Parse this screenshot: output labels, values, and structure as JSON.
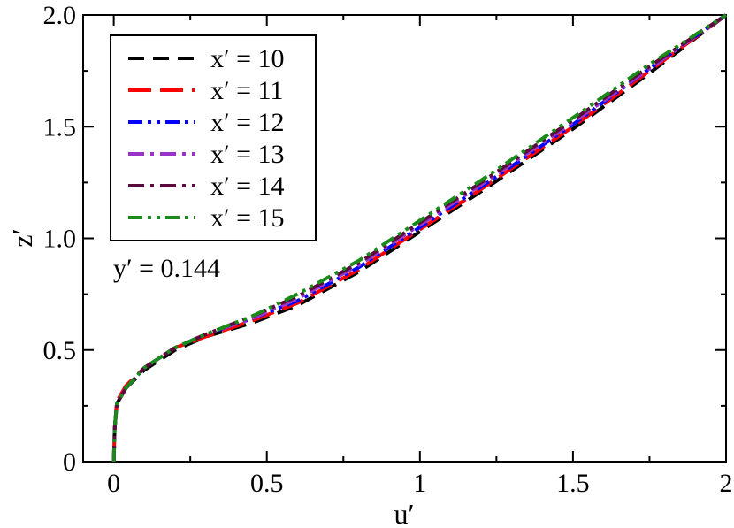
{
  "chart_data": {
    "type": "line",
    "xlabel": "u′",
    "ylabel": "z′",
    "xlim": [
      -0.1,
      2.0
    ],
    "ylim": [
      0,
      2.0
    ],
    "xticks": [
      0,
      0.5,
      1,
      1.5,
      2
    ],
    "xtick_labels": [
      "0",
      "0.5",
      "1",
      "1.5",
      "2"
    ],
    "yticks": [
      0,
      0.5,
      1.0,
      1.5,
      2.0
    ],
    "ytick_labels": [
      "0",
      "0.5",
      "1.0",
      "1.5",
      "2.0"
    ],
    "grid": false,
    "legend_position": "top-left",
    "annotation": "y′ = 0.144",
    "series": [
      {
        "name": "x′ = 10",
        "color": "#000000",
        "dash": "dash",
        "x": [
          0,
          0.003,
          0.01,
          0.04,
          0.1,
          0.2,
          0.3,
          0.45,
          0.6,
          0.8,
          1.0,
          1.2,
          1.5,
          1.75,
          2.0
        ],
        "y": [
          0,
          0.15,
          0.26,
          0.33,
          0.41,
          0.5,
          0.56,
          0.62,
          0.7,
          0.85,
          1.03,
          1.21,
          1.49,
          1.74,
          2.0
        ]
      },
      {
        "name": "x′ = 11",
        "color": "#ff0000",
        "dash": "longdash",
        "x": [
          0,
          0.003,
          0.01,
          0.04,
          0.1,
          0.2,
          0.3,
          0.45,
          0.6,
          0.8,
          1.0,
          1.2,
          1.5,
          1.75,
          2.0
        ],
        "y": [
          0,
          0.15,
          0.27,
          0.34,
          0.42,
          0.51,
          0.56,
          0.63,
          0.71,
          0.86,
          1.04,
          1.22,
          1.5,
          1.75,
          2.0
        ]
      },
      {
        "name": "x′ = 12",
        "color": "#0000ff",
        "dash": "dashdotdot",
        "x": [
          0,
          0.003,
          0.01,
          0.04,
          0.1,
          0.2,
          0.3,
          0.45,
          0.6,
          0.8,
          1.0,
          1.2,
          1.5,
          1.75,
          2.0
        ],
        "y": [
          0,
          0.15,
          0.26,
          0.33,
          0.42,
          0.51,
          0.57,
          0.64,
          0.72,
          0.87,
          1.05,
          1.23,
          1.51,
          1.76,
          2.0
        ]
      },
      {
        "name": "x′ = 13",
        "color": "#9933cc",
        "dash": "dashdot",
        "x": [
          0,
          0.003,
          0.01,
          0.04,
          0.1,
          0.2,
          0.3,
          0.45,
          0.6,
          0.8,
          1.0,
          1.2,
          1.5,
          1.75,
          2.0
        ],
        "y": [
          0,
          0.15,
          0.26,
          0.33,
          0.42,
          0.51,
          0.57,
          0.64,
          0.73,
          0.88,
          1.06,
          1.24,
          1.52,
          1.76,
          2.0
        ]
      },
      {
        "name": "x′ = 14",
        "color": "#5a0a3c",
        "dash": "dashdot",
        "x": [
          0,
          0.003,
          0.01,
          0.04,
          0.1,
          0.2,
          0.3,
          0.45,
          0.6,
          0.8,
          1.0,
          1.2,
          1.5,
          1.75,
          2.0
        ],
        "y": [
          0,
          0.15,
          0.26,
          0.33,
          0.42,
          0.51,
          0.57,
          0.65,
          0.74,
          0.89,
          1.07,
          1.25,
          1.53,
          1.77,
          2.0
        ]
      },
      {
        "name": "x′ = 15",
        "color": "#1a8a1a",
        "dash": "dashdotdot",
        "x": [
          0,
          0.003,
          0.01,
          0.04,
          0.1,
          0.2,
          0.3,
          0.45,
          0.6,
          0.8,
          1.0,
          1.2,
          1.5,
          1.75,
          2.0
        ],
        "y": [
          0,
          0.15,
          0.26,
          0.33,
          0.42,
          0.51,
          0.57,
          0.65,
          0.75,
          0.9,
          1.08,
          1.26,
          1.54,
          1.78,
          2.0
        ]
      }
    ]
  }
}
